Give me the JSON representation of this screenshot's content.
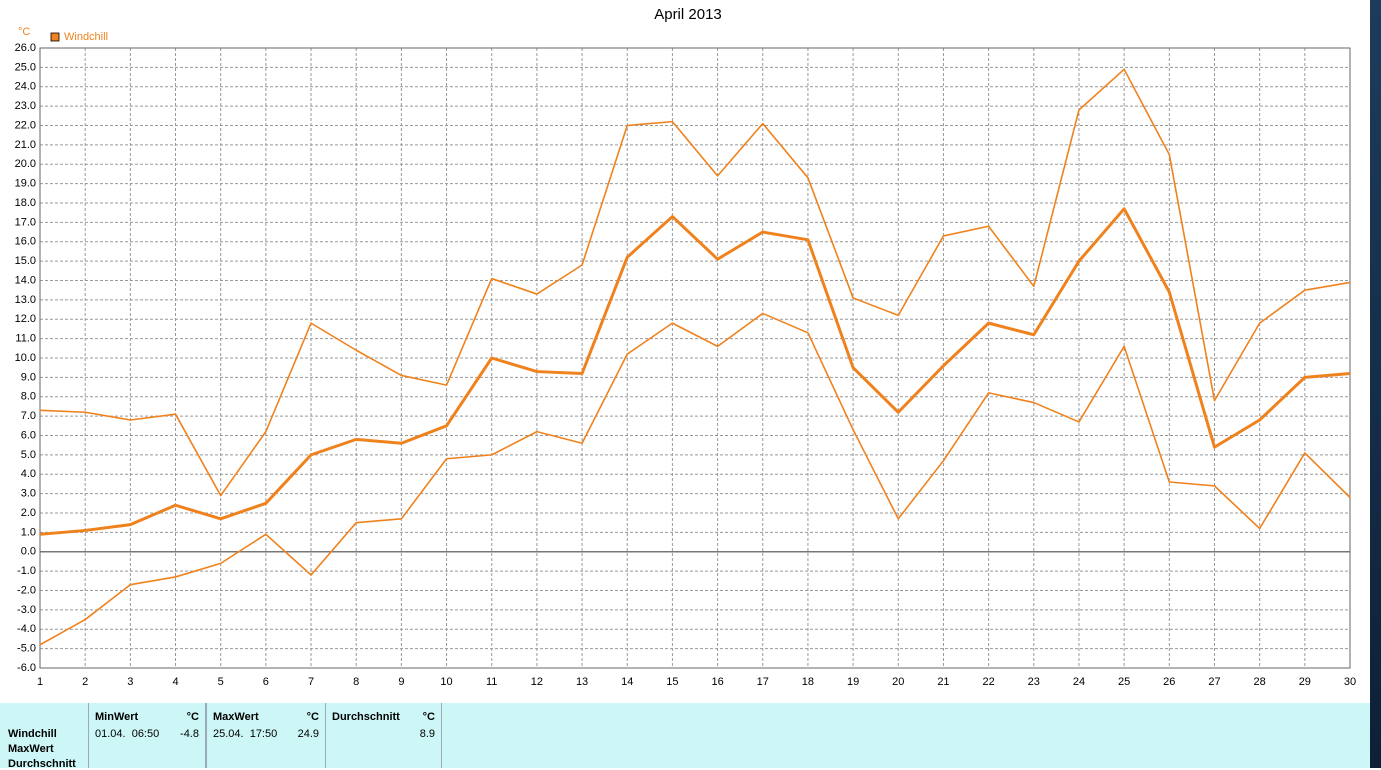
{
  "chart_data": {
    "type": "line",
    "title": "April 2013",
    "y_unit": "°C",
    "x": [
      1,
      2,
      3,
      4,
      5,
      6,
      7,
      8,
      9,
      10,
      11,
      12,
      13,
      14,
      15,
      16,
      17,
      18,
      19,
      20,
      21,
      22,
      23,
      24,
      25,
      26,
      27,
      28,
      29,
      30
    ],
    "xlim": [
      1,
      30
    ],
    "xticks": [
      1,
      2,
      3,
      4,
      5,
      6,
      7,
      8,
      9,
      10,
      11,
      12,
      13,
      14,
      15,
      16,
      17,
      18,
      19,
      20,
      21,
      22,
      23,
      24,
      25,
      26,
      27,
      28,
      29,
      30
    ],
    "ylim": [
      -6,
      26
    ],
    "yticks": [
      {
        "value": -6,
        "label": "-6.0"
      },
      {
        "value": -5,
        "label": "-5.0"
      },
      {
        "value": -4,
        "label": "-4.0"
      },
      {
        "value": -3,
        "label": "-3.0"
      },
      {
        "value": -2,
        "label": "-2.0"
      },
      {
        "value": -1,
        "label": "-1.0"
      },
      {
        "value": 0,
        "label": "0.0"
      },
      {
        "value": 1,
        "label": "1.0"
      },
      {
        "value": 2,
        "label": "2.0"
      },
      {
        "value": 3,
        "label": "3.0"
      },
      {
        "value": 4,
        "label": "4.0"
      },
      {
        "value": 5,
        "label": "5.0"
      },
      {
        "value": 6,
        "label": "6.0"
      },
      {
        "value": 7,
        "label": "7.0"
      },
      {
        "value": 8,
        "label": "8.0"
      },
      {
        "value": 9,
        "label": "9.0"
      },
      {
        "value": 10,
        "label": "10.0"
      },
      {
        "value": 11,
        "label": "11.0"
      },
      {
        "value": 12,
        "label": "12.0"
      },
      {
        "value": 13,
        "label": "13.0"
      },
      {
        "value": 14,
        "label": "14.0"
      },
      {
        "value": 15,
        "label": "15.0"
      },
      {
        "value": 16,
        "label": "16.0"
      },
      {
        "value": 17,
        "label": "17.0"
      },
      {
        "value": 18,
        "label": "18.0"
      },
      {
        "value": 19,
        "label": "19.0"
      },
      {
        "value": 20,
        "label": "20.0"
      },
      {
        "value": 21,
        "label": "21.0"
      },
      {
        "value": 22,
        "label": "22.0"
      },
      {
        "value": 23,
        "label": "23.0"
      },
      {
        "value": 24,
        "label": "24.0"
      },
      {
        "value": 25,
        "label": "25.0"
      },
      {
        "value": 26,
        "label": "26.0"
      }
    ],
    "grid": true,
    "series": [
      {
        "name": "Windchill",
        "color": "#f0821e",
        "values": [
          0.9,
          1.1,
          1.4,
          2.4,
          1.7,
          2.5,
          5.0,
          5.8,
          5.6,
          6.5,
          10.0,
          9.3,
          9.2,
          15.2,
          17.3,
          15.1,
          16.5,
          16.1,
          9.5,
          7.2,
          9.6,
          11.8,
          11.2,
          15.0,
          17.7,
          13.4,
          5.4,
          6.8,
          9.0,
          9.2
        ]
      },
      {
        "color": "#f0821e",
        "values": [
          7.3,
          7.2,
          6.8,
          7.1,
          2.9,
          6.2,
          11.8,
          10.4,
          9.1,
          8.6,
          14.1,
          13.3,
          14.8,
          22.0,
          22.2,
          19.4,
          22.1,
          19.3,
          13.1,
          12.2,
          16.3,
          16.8,
          13.7,
          22.8,
          24.9,
          20.5,
          7.8,
          11.8,
          13.5,
          13.9
        ]
      },
      {
        "color": "#f0821e",
        "values": [
          -4.8,
          -3.5,
          -1.7,
          -1.3,
          -0.6,
          0.9,
          -1.2,
          1.5,
          1.7,
          4.8,
          5.0,
          6.2,
          5.6,
          10.2,
          11.8,
          10.6,
          12.3,
          11.3,
          6.3,
          1.7,
          4.7,
          8.2,
          7.7,
          6.7,
          10.6,
          3.6,
          3.4,
          1.2,
          5.1,
          2.8
        ]
      }
    ]
  },
  "stats_table": {
    "row_labels": [
      "Windchill",
      "MaxWert",
      "Durchschnitt"
    ],
    "columns": [
      {
        "title": "MinWert",
        "unit": "°C",
        "date": "01.04.  06:50",
        "value": -4.8
      },
      {
        "title": "MaxWert",
        "unit": "°C",
        "date": "25.04.  17:50",
        "value": 24.9
      },
      {
        "title": "Durchschnitt",
        "unit": "°C",
        "value": 8.9
      }
    ]
  }
}
